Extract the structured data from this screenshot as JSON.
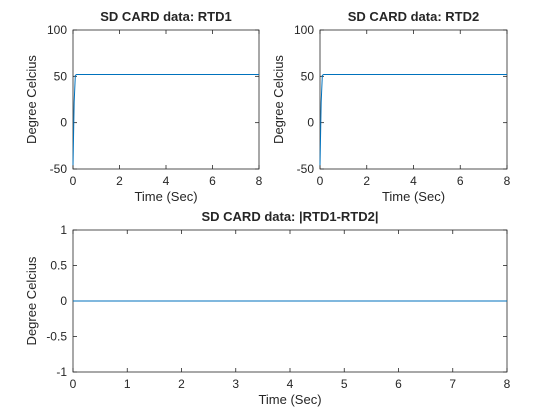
{
  "chart_data": [
    {
      "type": "line",
      "title": "SD CARD data: RTD1",
      "xlabel": "Time (Sec)",
      "ylabel": "Degree Celcius",
      "xlim": [
        0,
        8
      ],
      "ylim": [
        -50,
        100
      ],
      "xticks": [
        0,
        2,
        4,
        6,
        8
      ],
      "yticks": [
        -50,
        0,
        50,
        100
      ],
      "grid": false,
      "series": [
        {
          "color": "#0072bd",
          "x": [
            0,
            0.05,
            0.1,
            0.15,
            8
          ],
          "y": [
            -46,
            22,
            51,
            52,
            52
          ]
        }
      ]
    },
    {
      "type": "line",
      "title": "SD CARD data: RTD2",
      "xlabel": "Time (Sec)",
      "ylabel": "Degree Celcius",
      "xlim": [
        0,
        8
      ],
      "ylim": [
        -50,
        100
      ],
      "xticks": [
        0,
        2,
        4,
        6,
        8
      ],
      "yticks": [
        -50,
        0,
        50,
        100
      ],
      "grid": false,
      "series": [
        {
          "color": "#0072bd",
          "x": [
            0,
            0.05,
            0.1,
            0.15,
            8
          ],
          "y": [
            -46,
            22,
            51,
            52,
            52
          ]
        }
      ]
    },
    {
      "type": "line",
      "title": "SD CARD data: |RTD1-RTD2|",
      "xlabel": "Time (Sec)",
      "ylabel": "Degree Celcius",
      "xlim": [
        0,
        8
      ],
      "ylim": [
        -1,
        1
      ],
      "xticks": [
        0,
        1,
        2,
        3,
        4,
        5,
        6,
        7,
        8
      ],
      "yticks": [
        -1,
        -0.5,
        0,
        0.5,
        1
      ],
      "grid": false,
      "series": [
        {
          "color": "#0072bd",
          "x": [
            0,
            8
          ],
          "y": [
            0,
            0
          ]
        }
      ]
    }
  ]
}
